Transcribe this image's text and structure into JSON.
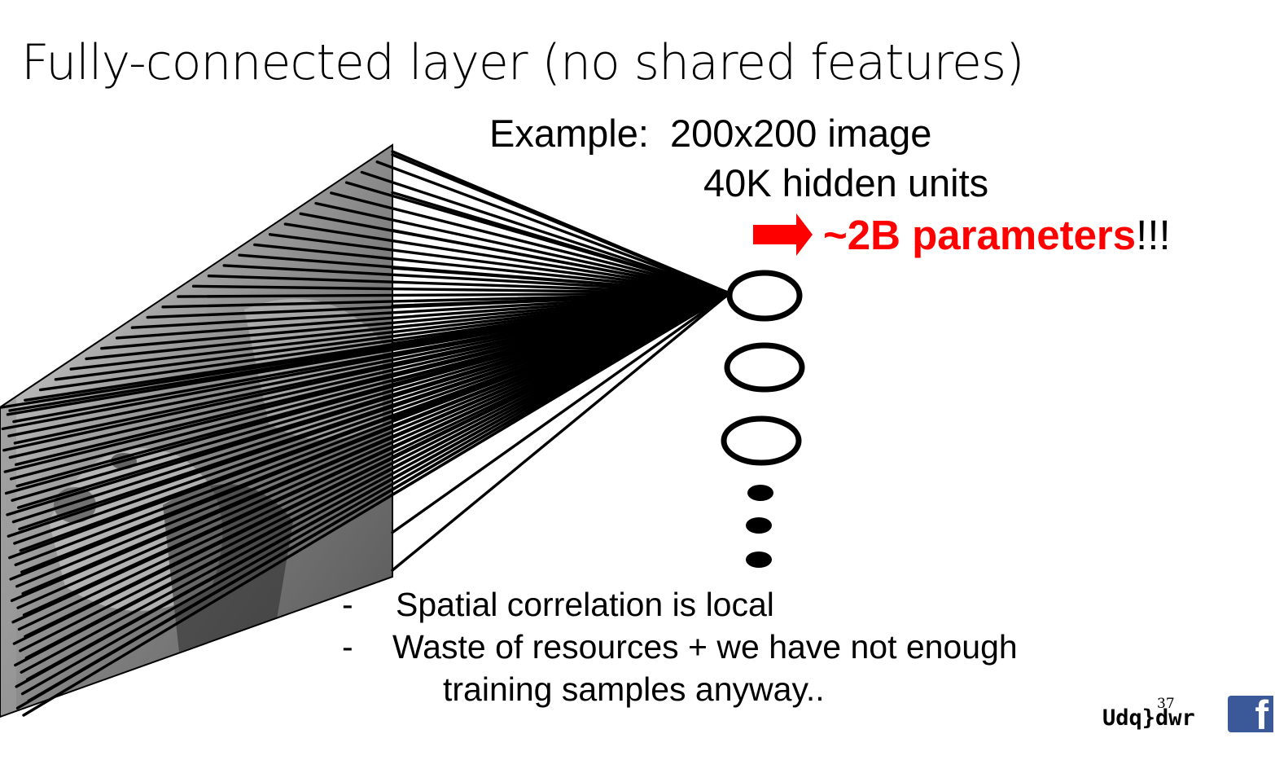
{
  "slide": {
    "title": "Fully-connected layer (no shared features)",
    "example_line1": "Example:  200x200 image",
    "example_line2": "40K hidden units",
    "params_highlight": "~2B parameters",
    "params_suffix": "!!!",
    "bullets": [
      "Spatial correlation is local",
      "Waste of resources + we have not enough",
      "training samples anyway.."
    ],
    "bullet_marker": "-",
    "footer_brand": "Udq}dwr",
    "page_number": "37",
    "social_letter": "f"
  },
  "colors": {
    "accent": "#ff0000",
    "facebook": "#3b5998"
  },
  "icons": [
    "right-arrow-icon",
    "facebook-icon"
  ]
}
